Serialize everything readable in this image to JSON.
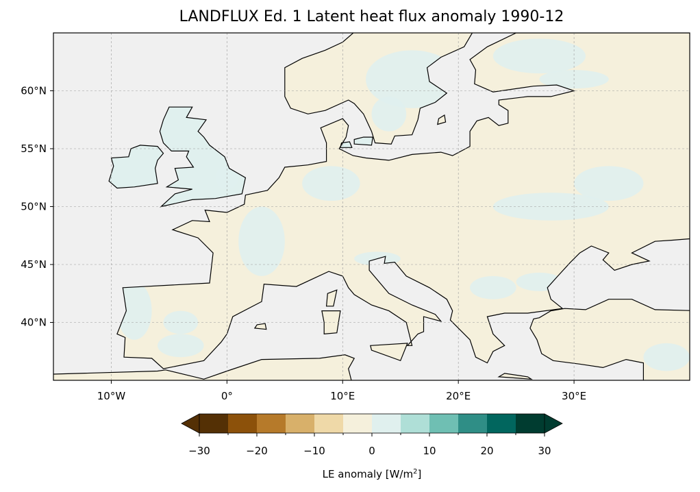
{
  "title": "LANDFLUX Ed. 1 Latent heat flux anomaly 1990-12",
  "map": {
    "projection": "PlateCarree",
    "extent_lon": [
      -15,
      40
    ],
    "extent_lat": [
      35,
      65
    ],
    "lon_ticks": [
      {
        "value": -10,
        "label": "10°W"
      },
      {
        "value": 0,
        "label": "0°"
      },
      {
        "value": 10,
        "label": "10°E"
      },
      {
        "value": 20,
        "label": "20°E"
      },
      {
        "value": 30,
        "label": "30°E"
      }
    ],
    "lat_ticks": [
      {
        "value": 60,
        "label": "60°N"
      },
      {
        "value": 55,
        "label": "55°N"
      },
      {
        "value": 50,
        "label": "50°N"
      },
      {
        "value": 45,
        "label": "45°N"
      },
      {
        "value": 40,
        "label": "40°N"
      }
    ],
    "sea_color": "#f0f0f0",
    "land_color": "#f5f0dc",
    "wet_color": "#e0f0ee"
  },
  "colorbar": {
    "label": "LE anomaly [W/m",
    "label_sup": "2",
    "label_end": "]",
    "boundaries": [
      -30,
      -25,
      -20,
      -15,
      -10,
      -5,
      0,
      5,
      10,
      15,
      20,
      25,
      30
    ],
    "colors": [
      "#543005",
      "#8c510a",
      "#b67a2a",
      "#d8b06a",
      "#efd9a8",
      "#f5f0dc",
      "#e0f0ee",
      "#afdfd7",
      "#6fbfb3",
      "#2f8e86",
      "#01665e",
      "#003c30"
    ],
    "tick_labels": [
      "−30",
      "−20",
      "−10",
      "0",
      "10",
      "20",
      "30"
    ],
    "extend": "both"
  }
}
